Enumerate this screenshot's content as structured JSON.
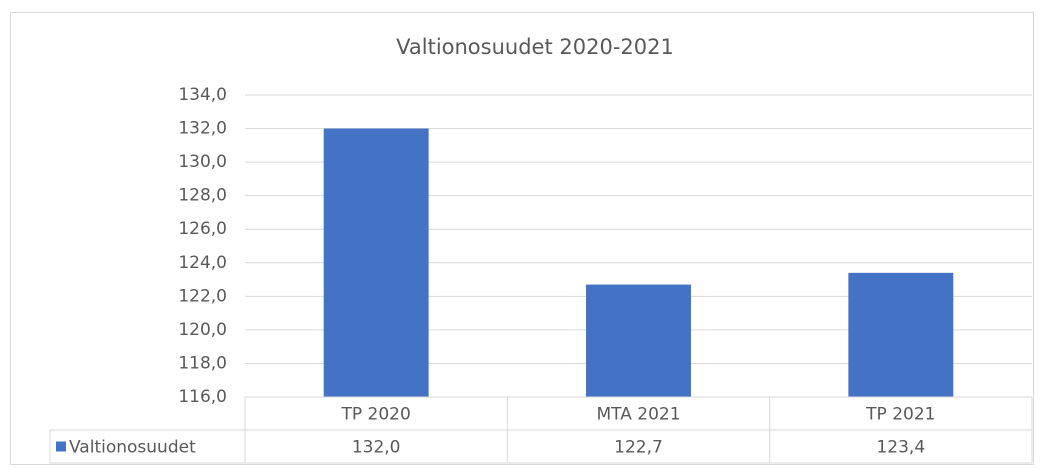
{
  "chart_data": {
    "type": "bar",
    "title": "Valtionosuudet 2020-2021",
    "categories": [
      "TP 2020",
      "MTA 2021",
      "TP 2021"
    ],
    "series": [
      {
        "name": "Valtionosuudet",
        "color": "#4472c4",
        "values": [
          132.0,
          122.7,
          123.4
        ],
        "value_labels": [
          "132,0",
          "122,7",
          "123,4"
        ]
      }
    ],
    "ylim": [
      116,
      134
    ],
    "yticks": [
      {
        "value": 116,
        "label": "116,0"
      },
      {
        "value": 118,
        "label": "118,0"
      },
      {
        "value": 120,
        "label": "120,0"
      },
      {
        "value": 122,
        "label": "122,0"
      },
      {
        "value": 124,
        "label": "124,0"
      },
      {
        "value": 126,
        "label": "126,0"
      },
      {
        "value": 128,
        "label": "128,0"
      },
      {
        "value": 130,
        "label": "130,0"
      },
      {
        "value": 132,
        "label": "132,0"
      },
      {
        "value": 134,
        "label": "134,0"
      }
    ],
    "grid": true,
    "data_table": true
  }
}
